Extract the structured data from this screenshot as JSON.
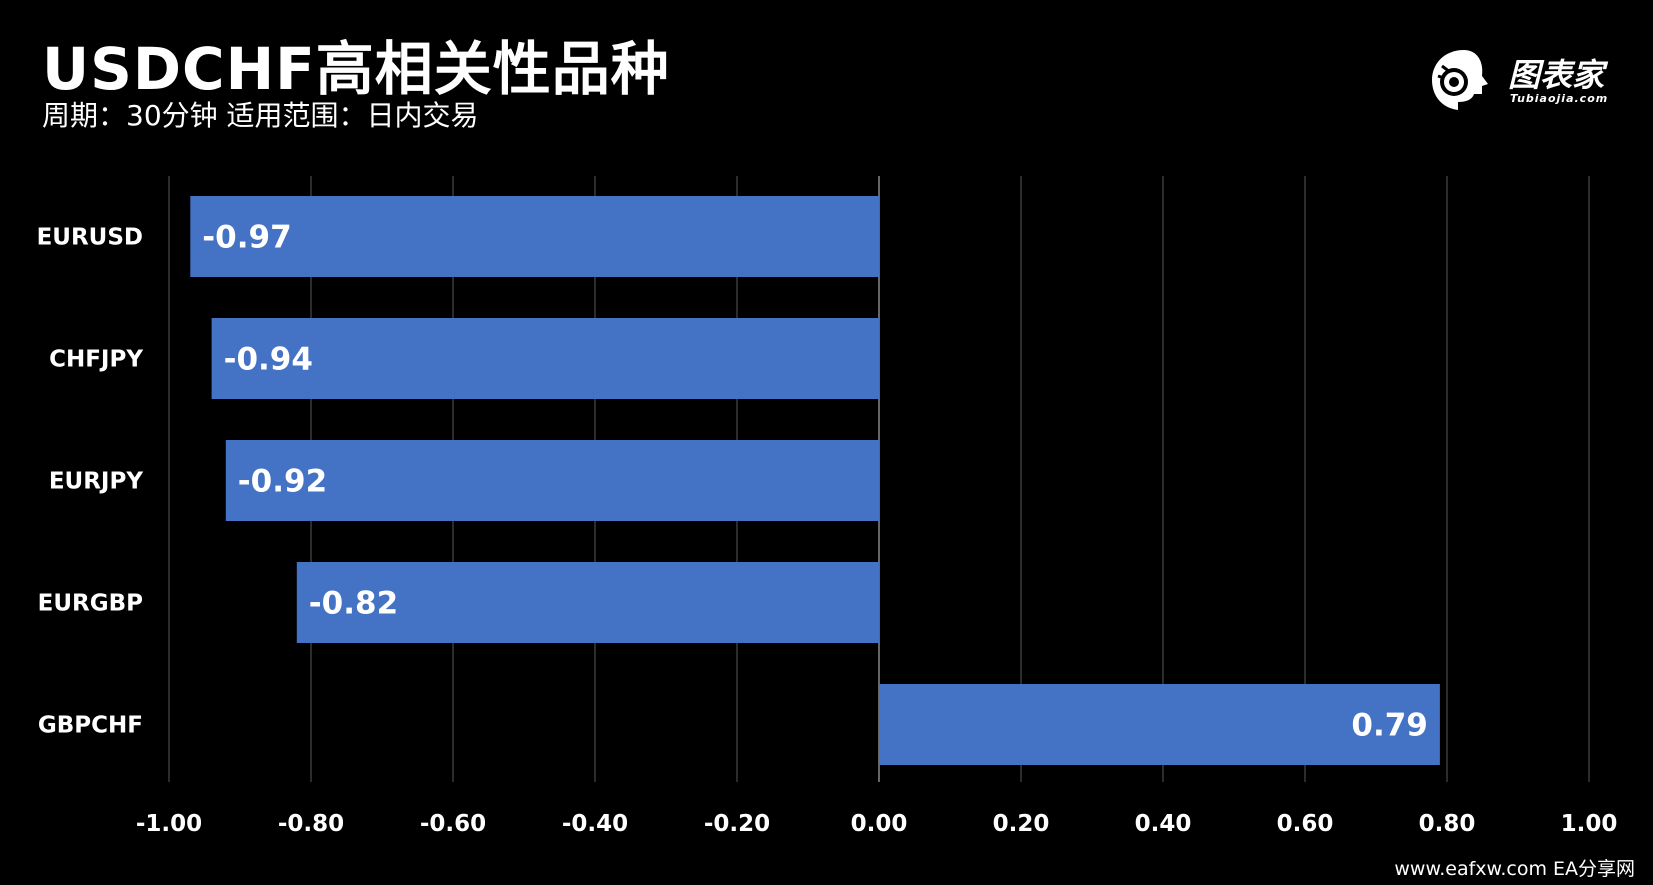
{
  "header": {
    "title": "USDCHF高相关性品种",
    "subtitle": "周期：30分钟  适用范围：日内交易"
  },
  "logo": {
    "text": "图表家",
    "sub": "Tubiaojia.com",
    "icon": "robot-head-icon"
  },
  "footer": {
    "text": "www.eafxw.com    EA分享网"
  },
  "colors": {
    "background": "#000000",
    "bar": "#4472c4",
    "grid": "#3a3a3a",
    "zero_line": "#666666",
    "text": "#ffffff"
  },
  "chart_data": {
    "type": "bar",
    "orientation": "horizontal",
    "categories": [
      "EURUSD",
      "CHFJPY",
      "EURJPY",
      "EURGBP",
      "GBPCHF"
    ],
    "values": [
      -0.97,
      -0.94,
      -0.92,
      -0.82,
      0.79
    ],
    "data_labels": [
      "-0.97",
      "-0.94",
      "-0.92",
      "-0.82",
      "0.79"
    ],
    "xlim": [
      -1.0,
      1.0
    ],
    "ticks": [
      -1.0,
      -0.8,
      -0.6,
      -0.4,
      -0.2,
      0.0,
      0.2,
      0.4,
      0.6,
      0.8,
      1.0
    ],
    "tick_labels": [
      "-1.00",
      "-0.80",
      "-0.60",
      "-0.40",
      "-0.20",
      "0.00",
      "0.20",
      "0.40",
      "0.60",
      "0.80",
      "1.00"
    ],
    "grid": "vertical",
    "legend": "none",
    "xlabel": "",
    "ylabel": ""
  }
}
